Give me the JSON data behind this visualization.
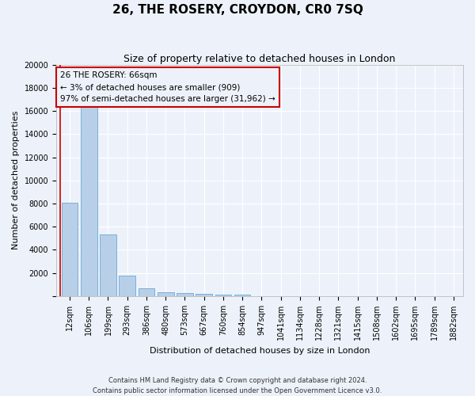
{
  "title1": "26, THE ROSERY, CROYDON, CR0 7SQ",
  "title2": "Size of property relative to detached houses in London",
  "xlabel": "Distribution of detached houses by size in London",
  "ylabel": "Number of detached properties",
  "categories": [
    "12sqm",
    "106sqm",
    "199sqm",
    "293sqm",
    "386sqm",
    "480sqm",
    "573sqm",
    "667sqm",
    "760sqm",
    "854sqm",
    "947sqm",
    "1041sqm",
    "1134sqm",
    "1228sqm",
    "1321sqm",
    "1415sqm",
    "1508sqm",
    "1602sqm",
    "1695sqm",
    "1789sqm",
    "1882sqm"
  ],
  "values": [
    8100,
    16600,
    5300,
    1750,
    700,
    350,
    260,
    200,
    150,
    100,
    0,
    0,
    0,
    0,
    0,
    0,
    0,
    0,
    0,
    0,
    0
  ],
  "bar_color": "#b8cfe8",
  "bar_edge_color": "#6aaad4",
  "vline_x": -0.5,
  "vline_color": "#cc0000",
  "annotation_box_text": "26 THE ROSERY: 66sqm\n← 3% of detached houses are smaller (909)\n97% of semi-detached houses are larger (31,962) →",
  "ylim": [
    0,
    20000
  ],
  "yticks": [
    0,
    2000,
    4000,
    6000,
    8000,
    10000,
    12000,
    14000,
    16000,
    18000,
    20000
  ],
  "footer1": "Contains HM Land Registry data © Crown copyright and database right 2024.",
  "footer2": "Contains public sector information licensed under the Open Government Licence v3.0.",
  "bg_color": "#edf2fa",
  "plot_bg_color": "#edf2fa",
  "grid_color": "#ffffff",
  "title1_fontsize": 11,
  "title2_fontsize": 9,
  "ylabel_fontsize": 8,
  "xlabel_fontsize": 8,
  "tick_fontsize": 7,
  "annot_fontsize": 7.5
}
